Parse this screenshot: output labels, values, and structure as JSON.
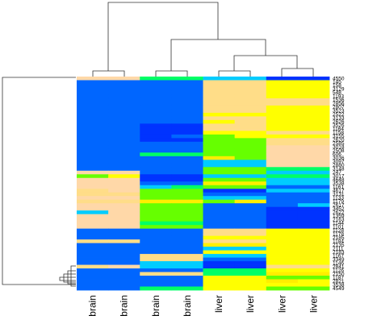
{
  "chart_data": {
    "type": "heatmap",
    "title": "",
    "xlabel": "",
    "ylabel": "",
    "columns": [
      "brain",
      "brain",
      "brain",
      "brain",
      "liver",
      "liver",
      "liver",
      "liver"
    ],
    "column_order_note": "",
    "row_labels": [
      "4550",
      "145",
      "158",
      "3129",
      "548",
      "1193",
      "1536",
      "2856",
      "2807",
      "3523",
      "2522",
      "3133",
      "2626",
      "3526",
      "1164",
      "1158",
      "3155",
      "2620",
      "2585",
      "3018",
      "2508",
      "606",
      "3036",
      "3097",
      "2880",
      "3148",
      "247",
      "3017",
      "4648",
      "3538",
      "1161",
      "4617",
      "3131",
      "1133",
      "1179",
      "2617",
      "3452",
      "2622",
      "1359",
      "2163",
      "1144",
      "1101",
      "1128",
      "1178",
      "2185",
      "1184",
      "2135",
      "2111",
      "2183",
      "1167",
      "3349",
      "1146",
      "2841",
      "1126",
      "2150",
      "1187",
      "2821",
      "3538",
      "4549"
    ],
    "palette": [
      "#0033ff",
      "#0066ff",
      "#00ccff",
      "#00ff66",
      "#66ff00",
      "#ffee00",
      "#ffff00",
      "#ffdd88",
      "#ffd8a8"
    ],
    "matrix": [
      [
        8,
        8,
        3,
        3,
        2,
        2,
        0,
        0
      ],
      [
        1,
        1,
        1,
        1,
        7,
        7,
        6,
        6
      ],
      [
        1,
        1,
        1,
        1,
        7,
        7,
        6,
        6
      ],
      [
        1,
        1,
        1,
        1,
        7,
        7,
        6,
        6
      ],
      [
        1,
        1,
        1,
        1,
        7,
        7,
        6,
        6
      ],
      [
        1,
        1,
        1,
        1,
        7,
        7,
        6,
        6
      ],
      [
        1,
        1,
        1,
        1,
        7,
        7,
        7,
        7
      ],
      [
        1,
        1,
        1,
        1,
        7,
        7,
        7,
        7
      ],
      [
        1,
        1,
        1,
        1,
        7,
        7,
        6,
        6
      ],
      [
        1,
        1,
        1,
        1,
        7,
        7,
        6,
        6
      ],
      [
        1,
        1,
        1,
        1,
        6,
        6,
        6,
        6
      ],
      [
        1,
        1,
        1,
        1,
        7,
        7,
        6,
        6
      ],
      [
        1,
        1,
        1,
        1,
        6,
        7,
        6,
        6
      ],
      [
        1,
        1,
        0,
        0,
        7,
        7,
        6,
        6
      ],
      [
        1,
        1,
        0,
        0,
        7,
        7,
        6,
        6
      ],
      [
        1,
        1,
        0,
        0,
        6,
        6,
        7,
        7
      ],
      [
        1,
        1,
        0,
        1,
        4,
        6,
        6,
        6
      ],
      [
        1,
        1,
        0,
        0,
        4,
        4,
        7,
        7
      ],
      [
        1,
        1,
        1,
        1,
        4,
        4,
        7,
        7
      ],
      [
        1,
        1,
        1,
        1,
        4,
        4,
        8,
        8
      ],
      [
        1,
        1,
        1,
        1,
        4,
        4,
        8,
        8
      ],
      [
        1,
        1,
        3,
        3,
        4,
        4,
        8,
        8
      ],
      [
        1,
        1,
        1,
        1,
        5,
        4,
        8,
        8
      ],
      [
        1,
        1,
        1,
        1,
        2,
        2,
        8,
        8
      ],
      [
        1,
        1,
        1,
        1,
        2,
        2,
        8,
        8
      ],
      [
        1,
        1,
        1,
        1,
        4,
        4,
        3,
        3
      ],
      [
        8,
        8,
        1,
        1,
        4,
        4,
        2,
        2
      ],
      [
        4,
        6,
        0,
        0,
        2,
        2,
        3,
        3
      ],
      [
        8,
        8,
        0,
        0,
        4,
        4,
        2,
        2
      ],
      [
        8,
        8,
        1,
        1,
        5,
        5,
        2,
        2
      ],
      [
        8,
        8,
        2,
        3,
        4,
        4,
        1,
        1
      ],
      [
        7,
        8,
        4,
        4,
        0,
        0,
        2,
        2
      ],
      [
        7,
        7,
        4,
        4,
        1,
        1,
        1,
        1
      ],
      [
        8,
        8,
        4,
        4,
        2,
        2,
        1,
        1
      ],
      [
        7,
        7,
        5,
        5,
        4,
        5,
        1,
        1
      ],
      [
        8,
        8,
        4,
        4,
        1,
        1,
        1,
        2
      ],
      [
        8,
        8,
        4,
        4,
        1,
        1,
        0,
        0
      ],
      [
        2,
        8,
        4,
        4,
        1,
        1,
        0,
        0
      ],
      [
        8,
        8,
        4,
        4,
        1,
        1,
        0,
        0
      ],
      [
        8,
        8,
        4,
        4,
        1,
        1,
        0,
        0
      ],
      [
        8,
        8,
        3,
        3,
        1,
        1,
        0,
        0
      ],
      [
        8,
        8,
        4,
        4,
        1,
        1,
        0,
        0
      ],
      [
        1,
        1,
        1,
        1,
        7,
        7,
        6,
        6
      ],
      [
        1,
        1,
        1,
        1,
        7,
        7,
        6,
        6
      ],
      [
        1,
        1,
        1,
        1,
        6,
        6,
        6,
        6
      ],
      [
        7,
        7,
        1,
        1,
        7,
        7,
        6,
        6
      ],
      [
        1,
        1,
        1,
        1,
        5,
        5,
        6,
        6
      ],
      [
        1,
        1,
        1,
        1,
        2,
        2,
        6,
        6
      ],
      [
        1,
        1,
        1,
        1,
        6,
        6,
        6,
        6
      ],
      [
        1,
        1,
        7,
        7,
        2,
        2,
        6,
        6
      ],
      [
        1,
        1,
        7,
        7,
        1,
        1,
        6,
        6
      ],
      [
        1,
        1,
        2,
        2,
        0,
        0,
        6,
        6
      ],
      [
        7,
        8,
        2,
        2,
        0,
        0,
        7,
        7
      ],
      [
        1,
        1,
        1,
        1,
        3,
        3,
        6,
        6
      ],
      [
        1,
        1,
        7,
        7,
        3,
        3,
        5,
        5
      ],
      [
        1,
        1,
        1,
        1,
        6,
        6,
        4,
        4
      ],
      [
        1,
        1,
        1,
        1,
        6,
        6,
        5,
        6
      ],
      [
        1,
        1,
        1,
        1,
        6,
        6,
        6,
        6
      ],
      [
        1,
        1,
        3,
        3,
        6,
        6,
        4,
        4
      ]
    ]
  }
}
